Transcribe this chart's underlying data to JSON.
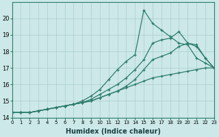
{
  "xlabel": "Humidex (Indice chaleur)",
  "bg_color": "#cce8e8",
  "line_color": "#2a7a6a",
  "grid_color": "#aacece",
  "xlim": [
    0,
    23
  ],
  "ylim": [
    14,
    21
  ],
  "yticks": [
    14,
    15,
    16,
    17,
    18,
    19,
    20
  ],
  "xticks": [
    0,
    1,
    2,
    3,
    4,
    5,
    6,
    7,
    8,
    9,
    10,
    11,
    12,
    13,
    14,
    15,
    16,
    17,
    18,
    19,
    20,
    21,
    22,
    23
  ],
  "series": [
    [
      14.3,
      14.3,
      14.3,
      14.4,
      14.5,
      14.6,
      14.7,
      14.8,
      14.9,
      15.0,
      15.2,
      15.4,
      15.6,
      15.8,
      16.0,
      16.2,
      16.4,
      16.5,
      16.6,
      16.7,
      16.8,
      16.9,
      17.0,
      17.0
    ],
    [
      14.3,
      14.3,
      14.3,
      14.4,
      14.5,
      14.6,
      14.7,
      14.8,
      14.9,
      15.0,
      15.2,
      15.4,
      15.6,
      15.9,
      16.3,
      16.9,
      17.5,
      17.7,
      17.9,
      18.3,
      18.5,
      18.4,
      17.6,
      17.0
    ],
    [
      14.3,
      14.3,
      14.3,
      14.4,
      14.5,
      14.6,
      14.7,
      14.8,
      14.9,
      15.1,
      15.4,
      15.7,
      16.0,
      16.4,
      16.9,
      17.5,
      18.5,
      18.7,
      18.8,
      19.2,
      18.5,
      18.3,
      17.6,
      17.0
    ],
    [
      14.3,
      14.3,
      14.3,
      14.4,
      14.5,
      14.6,
      14.7,
      14.8,
      15.0,
      15.3,
      15.7,
      16.3,
      16.9,
      17.4,
      17.8,
      20.5,
      19.7,
      19.3,
      18.9,
      18.5,
      18.4,
      17.6,
      17.3,
      17.0
    ]
  ]
}
